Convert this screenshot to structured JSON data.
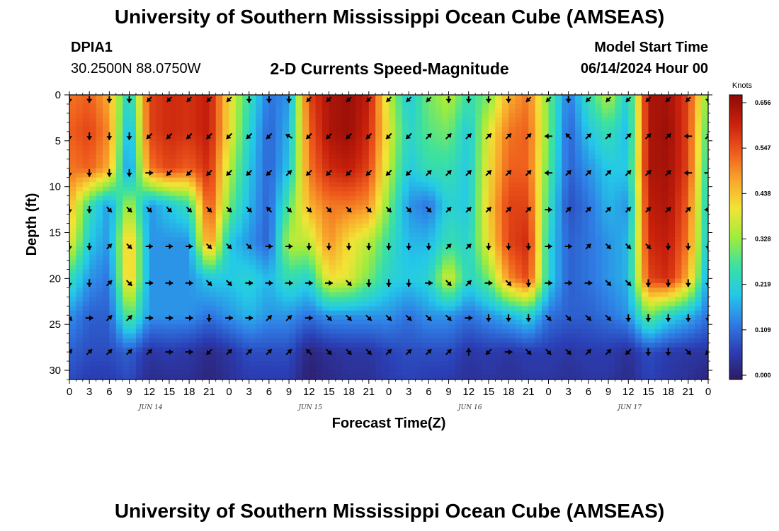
{
  "header": {
    "title": "University of Southern Mississippi Ocean Cube (AMSEAS)",
    "station_id": "DPIA1",
    "station_coords": "30.2500N  88.0750W",
    "chart_title": "2-D Currents Speed-Magnitude",
    "start_label": "Model Start Time",
    "start_time": "06/14/2024 Hour 00"
  },
  "footer": {
    "title": "University of Southern Mississippi Ocean Cube (AMSEAS)"
  },
  "chart_data": {
    "type": "heatmap",
    "title": "2-D Currents Speed-Magnitude",
    "xlabel": "Forecast Time(Z)",
    "ylabel": "Depth (ft)",
    "xlim": [
      0,
      96
    ],
    "ylim": [
      31,
      0
    ],
    "x_ticks": [
      0,
      3,
      6,
      9,
      12,
      15,
      18,
      21,
      24,
      27,
      30,
      33,
      36,
      39,
      42,
      45,
      48,
      51,
      54,
      57,
      60,
      63,
      66,
      69,
      72,
      75,
      78,
      81,
      84,
      87,
      90,
      93,
      96
    ],
    "x_tick_labels": [
      "0",
      "3",
      "6",
      "9",
      "12",
      "15",
      "18",
      "21",
      "0",
      "3",
      "6",
      "9",
      "12",
      "15",
      "18",
      "21",
      "0",
      "3",
      "6",
      "9",
      "12",
      "15",
      "18",
      "21",
      "0",
      "3",
      "6",
      "9",
      "12",
      "15",
      "18",
      "21",
      "0"
    ],
    "y_ticks": [
      0,
      5,
      10,
      15,
      20,
      25,
      30
    ],
    "y_tick_labels": [
      "0",
      "5",
      "10",
      "15",
      "20",
      "25",
      "30"
    ],
    "date_labels": [
      {
        "hour": 12,
        "label": "JUN 14"
      },
      {
        "hour": 36,
        "label": "JUN 15"
      },
      {
        "hour": 60,
        "label": "JUN 16"
      },
      {
        "hour": 84,
        "label": "JUN 17"
      }
    ],
    "colorbar": {
      "unit": "Knots",
      "min": 0.0,
      "max": 0.656,
      "tick_labels": [
        "0.656",
        "0.547",
        "0.438",
        "0.328",
        "0.219",
        "0.109",
        "0.000"
      ],
      "colors": [
        "#2e1a63",
        "#2b3fb5",
        "#2f7fe6",
        "#24c9e8",
        "#3ce1a0",
        "#a0ec3c",
        "#f2e436",
        "#f8a72c",
        "#ee5a1c",
        "#c8200c",
        "#8c0a06"
      ]
    },
    "speed_grid": {
      "hours": [
        0,
        3,
        6,
        9,
        12,
        15,
        18,
        21,
        24,
        27,
        30,
        33,
        36,
        39,
        42,
        45,
        48,
        51,
        54,
        57,
        60,
        63,
        66,
        69,
        72,
        75,
        78,
        81,
        84,
        87,
        90,
        93,
        96
      ],
      "depths": [
        0,
        4,
        8,
        12,
        16,
        20,
        24,
        28,
        31
      ],
      "values": [
        [
          0.5,
          0.52,
          0.45,
          0.2,
          0.55,
          0.58,
          0.57,
          0.6,
          0.4,
          0.25,
          0.12,
          0.15,
          0.55,
          0.62,
          0.64,
          0.6,
          0.35,
          0.2,
          0.3,
          0.35,
          0.25,
          0.3,
          0.45,
          0.5,
          0.3,
          0.12,
          0.25,
          0.35,
          0.2,
          0.62,
          0.63,
          0.55,
          0.3
        ],
        [
          0.52,
          0.55,
          0.48,
          0.15,
          0.55,
          0.58,
          0.57,
          0.6,
          0.4,
          0.22,
          0.1,
          0.18,
          0.52,
          0.62,
          0.64,
          0.58,
          0.38,
          0.22,
          0.28,
          0.3,
          0.2,
          0.38,
          0.5,
          0.52,
          0.3,
          0.1,
          0.2,
          0.25,
          0.18,
          0.62,
          0.64,
          0.55,
          0.25
        ],
        [
          0.5,
          0.52,
          0.45,
          0.12,
          0.5,
          0.55,
          0.52,
          0.58,
          0.35,
          0.2,
          0.1,
          0.2,
          0.5,
          0.58,
          0.6,
          0.55,
          0.35,
          0.2,
          0.25,
          0.25,
          0.2,
          0.4,
          0.52,
          0.52,
          0.28,
          0.1,
          0.15,
          0.2,
          0.2,
          0.62,
          0.63,
          0.55,
          0.22
        ],
        [
          0.45,
          0.25,
          0.15,
          0.35,
          0.15,
          0.2,
          0.25,
          0.55,
          0.3,
          0.18,
          0.1,
          0.28,
          0.45,
          0.5,
          0.5,
          0.48,
          0.3,
          0.15,
          0.12,
          0.22,
          0.2,
          0.42,
          0.55,
          0.55,
          0.25,
          0.08,
          0.12,
          0.18,
          0.15,
          0.6,
          0.62,
          0.52,
          0.2
        ],
        [
          0.4,
          0.2,
          0.15,
          0.45,
          0.15,
          0.15,
          0.15,
          0.5,
          0.2,
          0.15,
          0.1,
          0.35,
          0.35,
          0.48,
          0.4,
          0.35,
          0.25,
          0.18,
          0.18,
          0.25,
          0.22,
          0.4,
          0.55,
          0.58,
          0.22,
          0.1,
          0.12,
          0.15,
          0.18,
          0.58,
          0.6,
          0.5,
          0.18
        ],
        [
          0.25,
          0.15,
          0.12,
          0.45,
          0.15,
          0.15,
          0.15,
          0.2,
          0.2,
          0.22,
          0.18,
          0.25,
          0.22,
          0.4,
          0.38,
          0.3,
          0.22,
          0.2,
          0.22,
          0.38,
          0.22,
          0.3,
          0.48,
          0.55,
          0.22,
          0.1,
          0.12,
          0.15,
          0.18,
          0.55,
          0.58,
          0.45,
          0.15
        ],
        [
          0.15,
          0.1,
          0.1,
          0.3,
          0.15,
          0.15,
          0.15,
          0.12,
          0.15,
          0.18,
          0.15,
          0.15,
          0.12,
          0.15,
          0.15,
          0.15,
          0.15,
          0.12,
          0.15,
          0.15,
          0.12,
          0.15,
          0.18,
          0.22,
          0.12,
          0.1,
          0.1,
          0.12,
          0.15,
          0.3,
          0.22,
          0.18,
          0.12
        ],
        [
          0.1,
          0.08,
          0.08,
          0.1,
          0.05,
          0.06,
          0.05,
          0.03,
          0.05,
          0.08,
          0.08,
          0.08,
          0.02,
          0.04,
          0.05,
          0.05,
          0.07,
          0.08,
          0.08,
          0.08,
          0.05,
          0.06,
          0.05,
          0.06,
          0.06,
          0.05,
          0.06,
          0.06,
          0.04,
          0.08,
          0.06,
          0.05,
          0.05
        ],
        [
          0.08,
          0.06,
          0.06,
          0.08,
          0.03,
          0.04,
          0.04,
          0.02,
          0.04,
          0.06,
          0.06,
          0.06,
          0.01,
          0.03,
          0.04,
          0.04,
          0.06,
          0.07,
          0.06,
          0.06,
          0.04,
          0.05,
          0.04,
          0.05,
          0.05,
          0.04,
          0.05,
          0.05,
          0.03,
          0.07,
          0.05,
          0.04,
          0.02
        ]
      ]
    },
    "vectors": {
      "depths": [
        0.5,
        4.5,
        8.5,
        12.5,
        16.5,
        20.5,
        24.3,
        28.0
      ],
      "hours": [
        0,
        3,
        6,
        9,
        12,
        15,
        18,
        21,
        24,
        27,
        30,
        33,
        36,
        39,
        42,
        45,
        48,
        51,
        54,
        57,
        60,
        63,
        66,
        69,
        72,
        75,
        78,
        81,
        84,
        87,
        90,
        93,
        96
      ],
      "directions_deg": [
        [
          180,
          180,
          180,
          180,
          225,
          225,
          225,
          225,
          225,
          180,
          180,
          180,
          225,
          225,
          225,
          225,
          225,
          225,
          225,
          180,
          180,
          180,
          180,
          225,
          225,
          180,
          225,
          225,
          225,
          225,
          225,
          225,
          180
        ],
        [
          180,
          180,
          180,
          180,
          225,
          225,
          225,
          225,
          225,
          225,
          225,
          300,
          225,
          225,
          225,
          225,
          225,
          225,
          45,
          45,
          45,
          45,
          45,
          45,
          270,
          315,
          45,
          45,
          45,
          45,
          45,
          270,
          45
        ],
        [
          180,
          180,
          180,
          180,
          90,
          225,
          225,
          225,
          225,
          225,
          225,
          45,
          225,
          225,
          225,
          225,
          225,
          225,
          45,
          45,
          45,
          45,
          45,
          45,
          270,
          45,
          45,
          45,
          45,
          45,
          45,
          270,
          90
        ],
        [
          180,
          180,
          135,
          135,
          135,
          135,
          135,
          135,
          135,
          135,
          315,
          135,
          135,
          135,
          135,
          135,
          135,
          135,
          135,
          45,
          45,
          45,
          45,
          45,
          90,
          45,
          45,
          45,
          45,
          45,
          45,
          45,
          270
        ],
        [
          180,
          180,
          45,
          135,
          90,
          90,
          90,
          135,
          135,
          135,
          90,
          90,
          180,
          180,
          180,
          180,
          180,
          180,
          180,
          45,
          45,
          180,
          180,
          180,
          90,
          90,
          45,
          135,
          135,
          135,
          180,
          180,
          180
        ],
        [
          180,
          180,
          45,
          135,
          90,
          90,
          90,
          135,
          135,
          90,
          90,
          90,
          90,
          90,
          135,
          180,
          180,
          180,
          90,
          135,
          45,
          90,
          135,
          180,
          90,
          90,
          90,
          135,
          135,
          180,
          180,
          180,
          180
        ],
        [
          135,
          90,
          45,
          45,
          90,
          90,
          90,
          180,
          90,
          90,
          45,
          45,
          90,
          135,
          135,
          135,
          135,
          135,
          135,
          135,
          90,
          180,
          180,
          180,
          135,
          135,
          135,
          135,
          180,
          180,
          180,
          180,
          180
        ],
        [
          45,
          45,
          45,
          45,
          45,
          90,
          90,
          225,
          45,
          45,
          45,
          45,
          315,
          135,
          135,
          135,
          45,
          45,
          45,
          45,
          0,
          225,
          90,
          135,
          135,
          135,
          45,
          45,
          225,
          180,
          180,
          135,
          225
        ]
      ],
      "lengths_rel": [
        0.8,
        0.9,
        0.9,
        0.85,
        0.85,
        0.9,
        0.9,
        0.9
      ]
    }
  }
}
